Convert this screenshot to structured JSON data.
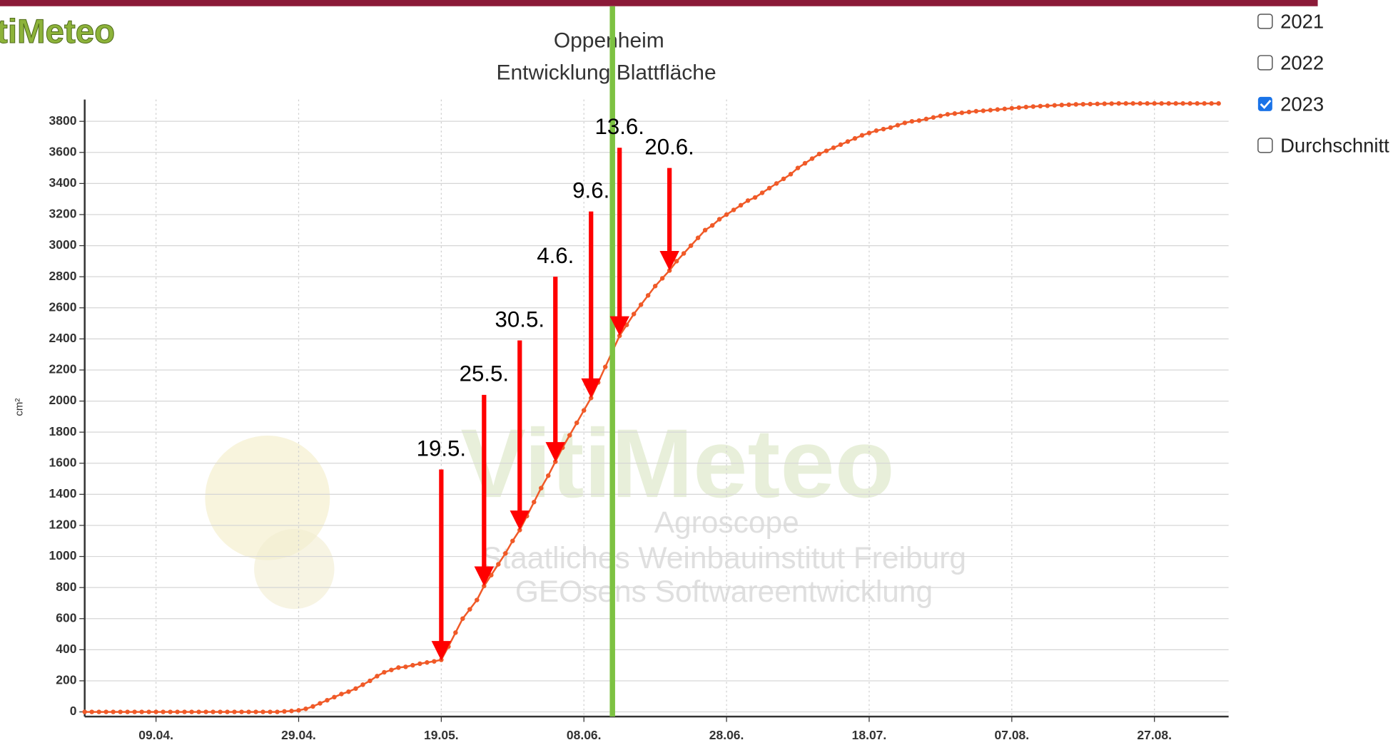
{
  "logo": "tiMeteo",
  "checkboxes": [
    {
      "name": "2021",
      "checked": false
    },
    {
      "name": "2022",
      "checked": false
    },
    {
      "name": "2023",
      "checked": true
    },
    {
      "name": "Durchschnitt",
      "checked": false
    }
  ],
  "chart_data": {
    "type": "line",
    "title": "Oppenheim",
    "subtitle": "Entwicklung Blattfläche",
    "y_label": "cm²",
    "watermark": [
      "VitiMeteo",
      "Agroscope",
      "Staatliches Weinbauinstitut Freiburg",
      "GEOsens Softwareentwicklung"
    ],
    "x": [
      "30.03.",
      "31.03.",
      "01.04.",
      "02.04.",
      "03.04.",
      "04.04.",
      "05.04.",
      "06.04.",
      "07.04.",
      "08.04.",
      "09.04.",
      "10.04.",
      "11.04.",
      "12.04.",
      "13.04.",
      "14.04.",
      "15.04.",
      "16.04.",
      "17.04.",
      "18.04.",
      "19.04.",
      "20.04.",
      "21.04.",
      "22.04.",
      "23.04.",
      "24.04.",
      "25.04.",
      "26.04.",
      "27.04.",
      "28.04.",
      "29.04.",
      "30.04.",
      "01.05.",
      "02.05.",
      "03.05.",
      "04.05.",
      "05.05.",
      "06.05.",
      "07.05.",
      "08.05.",
      "09.05.",
      "10.05.",
      "11.05.",
      "12.05.",
      "13.05.",
      "14.05.",
      "15.05.",
      "16.05.",
      "17.05.",
      "18.05.",
      "19.05.",
      "20.05.",
      "21.05.",
      "22.05.",
      "23.05.",
      "24.05.",
      "25.05.",
      "26.05.",
      "27.05.",
      "28.05.",
      "29.05.",
      "30.05.",
      "31.05.",
      "01.06.",
      "02.06.",
      "03.06.",
      "04.06.",
      "05.06.",
      "06.06.",
      "07.06.",
      "08.06.",
      "09.06.",
      "10.06.",
      "11.06.",
      "12.06.",
      "13.06.",
      "14.06.",
      "15.06.",
      "16.06.",
      "17.06.",
      "18.06.",
      "19.06.",
      "20.06.",
      "21.06.",
      "22.06.",
      "23.06.",
      "24.06.",
      "25.06.",
      "26.06.",
      "27.06.",
      "28.06.",
      "29.06.",
      "30.06.",
      "01.07.",
      "02.07.",
      "03.07.",
      "04.07.",
      "05.07.",
      "06.07.",
      "07.07.",
      "08.07.",
      "09.07.",
      "10.07.",
      "11.07.",
      "12.07.",
      "13.07.",
      "14.07.",
      "15.07.",
      "16.07.",
      "17.07.",
      "18.07.",
      "19.07.",
      "20.07.",
      "21.07.",
      "22.07.",
      "23.07.",
      "24.07.",
      "25.07.",
      "26.07.",
      "27.07.",
      "28.07.",
      "29.07.",
      "30.07.",
      "31.07.",
      "01.08.",
      "02.08.",
      "03.08.",
      "04.08.",
      "05.08.",
      "06.08.",
      "07.08.",
      "08.08.",
      "09.08.",
      "10.08.",
      "11.08.",
      "12.08.",
      "13.08.",
      "14.08.",
      "15.08.",
      "16.08.",
      "17.08.",
      "18.08.",
      "19.08.",
      "20.08.",
      "21.08.",
      "22.08.",
      "23.08.",
      "24.08.",
      "25.08.",
      "26.08.",
      "27.08.",
      "28.08.",
      "29.08.",
      "30.08.",
      "31.08.",
      "01.09.",
      "02.09.",
      "03.09.",
      "04.09.",
      "05.09."
    ],
    "series": [
      {
        "name": "2023",
        "color": "#f05a28",
        "values": [
          0,
          0,
          0,
          0,
          0,
          0,
          0,
          0,
          0,
          0,
          0,
          0,
          0,
          0,
          0,
          0,
          0,
          0,
          0,
          0,
          0,
          0,
          0,
          0,
          0,
          0,
          0,
          0,
          3,
          6,
          10,
          20,
          35,
          55,
          75,
          95,
          115,
          130,
          150,
          175,
          200,
          230,
          255,
          270,
          285,
          290,
          300,
          310,
          318,
          325,
          335,
          420,
          510,
          600,
          660,
          720,
          810,
          880,
          950,
          1020,
          1100,
          1170,
          1260,
          1350,
          1440,
          1520,
          1610,
          1700,
          1780,
          1860,
          1940,
          2020,
          2120,
          2220,
          2320,
          2420,
          2490,
          2560,
          2620,
          2680,
          2740,
          2790,
          2840,
          2900,
          2950,
          3000,
          3050,
          3100,
          3130,
          3170,
          3200,
          3230,
          3260,
          3290,
          3310,
          3340,
          3370,
          3400,
          3430,
          3460,
          3500,
          3530,
          3560,
          3590,
          3610,
          3630,
          3650,
          3670,
          3690,
          3710,
          3725,
          3740,
          3750,
          3760,
          3775,
          3790,
          3800,
          3805,
          3815,
          3825,
          3835,
          3845,
          3850,
          3855,
          3860,
          3865,
          3868,
          3872,
          3876,
          3880,
          3884,
          3888,
          3892,
          3895,
          3898,
          3900,
          3903,
          3905,
          3907,
          3909,
          3910,
          3911,
          3912,
          3913,
          3914,
          3915,
          3915,
          3915,
          3915,
          3915,
          3915,
          3915,
          3915,
          3915,
          3915,
          3915,
          3915,
          3915,
          3915,
          3915
        ]
      }
    ],
    "xticks": [
      "09.04.",
      "29.04.",
      "19.05.",
      "08.06.",
      "28.06.",
      "18.07.",
      "07.08.",
      "27.08."
    ],
    "ylim": [
      -30,
      3940
    ],
    "yticks": [
      0,
      200,
      400,
      600,
      800,
      1000,
      1200,
      1400,
      1600,
      1800,
      2000,
      2200,
      2400,
      2600,
      2800,
      3000,
      3200,
      3400,
      3600,
      3800
    ],
    "grid": true,
    "marker_line": {
      "x": "12.06.",
      "color": "#7dc242"
    },
    "annotations": [
      {
        "label": "19.5.",
        "x": "19.05.",
        "y_from": 1560,
        "y_to": 330
      },
      {
        "label": "25.5.",
        "x": "25.05.",
        "y_from": 2040,
        "y_to": 810
      },
      {
        "label": "30.5.",
        "x": "30.05.",
        "y_from": 2390,
        "y_to": 1170
      },
      {
        "label": "4.6.",
        "x": "04.06.",
        "y_from": 2800,
        "y_to": 1610
      },
      {
        "label": "9.6.",
        "x": "09.06.",
        "y_from": 3220,
        "y_to": 2020
      },
      {
        "label": "13.6.",
        "x": "13.06.",
        "y_from": 3630,
        "y_to": 2420
      },
      {
        "label": "20.6.",
        "x": "20.06.",
        "y_from": 3500,
        "y_to": 2840
      }
    ]
  }
}
